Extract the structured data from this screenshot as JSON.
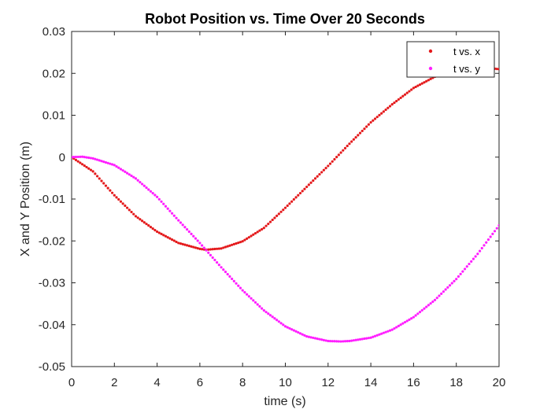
{
  "chart_data": {
    "type": "scatter",
    "title": "Robot Position vs. Time Over 20 Seconds",
    "xlabel": "time (s)",
    "ylabel": "X and Y Position (m)",
    "xlim": [
      0,
      20
    ],
    "ylim": [
      -0.05,
      0.03
    ],
    "xticks": [
      0,
      2,
      4,
      6,
      8,
      10,
      12,
      14,
      16,
      18,
      20
    ],
    "yticks": [
      -0.05,
      -0.04,
      -0.03,
      -0.02,
      -0.01,
      0,
      0.01,
      0.02,
      0.03
    ],
    "xtick_labels": [
      "0",
      "2",
      "4",
      "6",
      "8",
      "10",
      "12",
      "14",
      "16",
      "18",
      "20"
    ],
    "ytick_labels": [
      "-0.05",
      "-0.04",
      "-0.03",
      "-0.02",
      "-0.01",
      "0",
      "0.01",
      "0.02",
      "0.03"
    ],
    "grid": false,
    "legend_position": "top-right",
    "series": [
      {
        "name": "t vs. x",
        "color": "#e41a1c",
        "points": [
          [
            0,
            0
          ],
          [
            1,
            -0.0034
          ],
          [
            2,
            -0.0091
          ],
          [
            3,
            -0.0141
          ],
          [
            4,
            -0.0178
          ],
          [
            5,
            -0.0205
          ],
          [
            6,
            -0.0219
          ],
          [
            6.3,
            -0.0221
          ],
          [
            7,
            -0.0218
          ],
          [
            8,
            -0.0201
          ],
          [
            9,
            -0.0169
          ],
          [
            10,
            -0.0121
          ],
          [
            11,
            -0.0071
          ],
          [
            12,
            -0.0021
          ],
          [
            13,
            0.0032
          ],
          [
            14,
            0.0083
          ],
          [
            15,
            0.0126
          ],
          [
            16,
            0.0165
          ],
          [
            17,
            0.0192
          ],
          [
            18,
            0.0209
          ],
          [
            19,
            0.0215
          ],
          [
            20,
            0.021
          ]
        ]
      },
      {
        "name": "t vs. y",
        "color": "#ff1fff",
        "points": [
          [
            0,
            0
          ],
          [
            0.5,
            0.0001
          ],
          [
            1,
            -0.0003
          ],
          [
            2,
            -0.0019
          ],
          [
            3,
            -0.0051
          ],
          [
            4,
            -0.0095
          ],
          [
            5,
            -0.0151
          ],
          [
            6,
            -0.0205
          ],
          [
            7,
            -0.0263
          ],
          [
            8,
            -0.0318
          ],
          [
            9,
            -0.0366
          ],
          [
            10,
            -0.0404
          ],
          [
            11,
            -0.0428
          ],
          [
            12,
            -0.0439
          ],
          [
            12.6,
            -0.044
          ],
          [
            13,
            -0.0439
          ],
          [
            14,
            -0.0431
          ],
          [
            15,
            -0.0412
          ],
          [
            16,
            -0.0382
          ],
          [
            17,
            -0.0341
          ],
          [
            18,
            -0.0291
          ],
          [
            19,
            -0.0231
          ],
          [
            20,
            -0.0163
          ]
        ]
      }
    ]
  }
}
